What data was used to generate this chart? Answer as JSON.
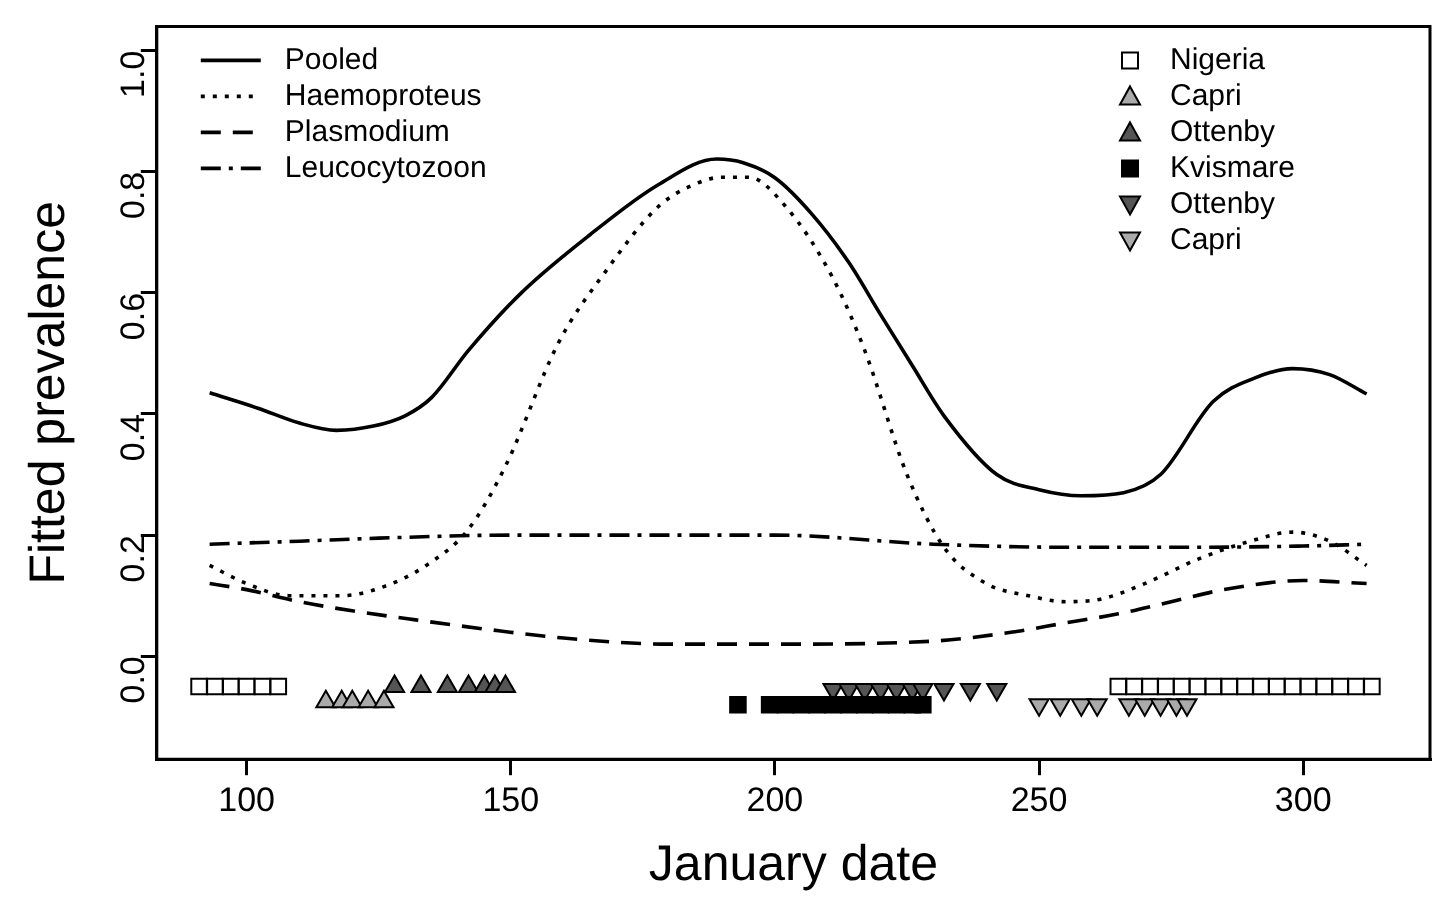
{
  "chart_data": {
    "type": "line",
    "xlabel": "January date",
    "ylabel": "Fitted prevalence",
    "xlim": [
      83,
      324
    ],
    "xticks": [
      100,
      150,
      200,
      250,
      300
    ],
    "ylim": [
      -0.17,
      1.04
    ],
    "yticks": [
      {
        "value": 0,
        "label": "0.0"
      },
      {
        "value": 0.2,
        "label": "0.2"
      },
      {
        "value": 0.4,
        "label": "0.4"
      },
      {
        "value": 0.6,
        "label": "0.6"
      },
      {
        "value": 0.8,
        "label": "0.8"
      },
      {
        "value": 1,
        "label": "1.0"
      }
    ],
    "legend": "top left",
    "marker": "none",
    "series": [
      {
        "name": "Pooled",
        "color": "#000000",
        "line_style": "solid",
        "x": [
          93,
          102,
          110,
          117,
          124,
          130,
          135,
          142,
          152,
          165,
          178,
          189,
          194,
          200,
          207,
          214,
          220,
          226,
          232,
          242,
          250,
          258,
          266,
          273,
          283,
          291,
          298,
          305,
          312
        ],
        "values": [
          0.435,
          0.41,
          0.385,
          0.373,
          0.38,
          0.397,
          0.427,
          0.505,
          0.6,
          0.696,
          0.779,
          0.821,
          0.815,
          0.79,
          0.73,
          0.65,
          0.564,
          0.48,
          0.397,
          0.3,
          0.275,
          0.265,
          0.27,
          0.3,
          0.421,
          0.46,
          0.475,
          0.465,
          0.433
        ]
      },
      {
        "name": "Haemoproteus",
        "color": "#000000",
        "line_style": "dotted",
        "x": [
          93,
          100,
          108,
          118,
          126,
          134,
          142,
          149,
          159,
          168,
          178,
          185,
          190,
          195,
          202,
          211,
          217,
          225,
          232,
          240,
          248,
          255,
          262,
          270,
          280,
          290,
          298,
          305,
          312
        ],
        "values": [
          0.15,
          0.12,
          0.1,
          0.1,
          0.115,
          0.15,
          0.21,
          0.314,
          0.517,
          0.636,
          0.743,
          0.78,
          0.791,
          0.791,
          0.743,
          0.624,
          0.505,
          0.3,
          0.18,
          0.12,
          0.1,
          0.09,
          0.095,
          0.12,
          0.16,
          0.19,
          0.205,
          0.19,
          0.15
        ]
      },
      {
        "name": "Plasmodium",
        "color": "#000000",
        "line_style": "dashed",
        "x": [
          93,
          100,
          110,
          120,
          132,
          145,
          160,
          180,
          200,
          230,
          245,
          255,
          265,
          275,
          285,
          300,
          312
        ],
        "values": [
          0.12,
          0.11,
          0.09,
          0.075,
          0.06,
          0.045,
          0.03,
          0.02,
          0.02,
          0.025,
          0.04,
          0.055,
          0.07,
          0.09,
          0.11,
          0.125,
          0.12
        ]
      },
      {
        "name": "Leucocytozoon",
        "color": "#000000",
        "line_style": "dashdot",
        "x": [
          93,
          110,
          125,
          150,
          175,
          200,
          230,
          255,
          280,
          300,
          312
        ],
        "values": [
          0.185,
          0.19,
          0.195,
          0.2,
          0.2,
          0.2,
          0.185,
          0.18,
          0.18,
          0.182,
          0.185
        ]
      },
      {
        "name": "Nigeria",
        "type": "scatter",
        "color": "#ffffff",
        "marker": "square",
        "x": [
          91,
          94,
          97,
          100,
          103,
          106,
          265,
          268,
          271,
          274,
          277,
          280,
          283,
          286,
          289,
          292,
          295,
          298,
          301,
          304,
          307,
          310,
          313
        ],
        "values": [
          -0.05,
          -0.05,
          -0.05,
          -0.05,
          -0.05,
          -0.05,
          -0.05,
          -0.05,
          -0.05,
          -0.05,
          -0.05,
          -0.05,
          -0.05,
          -0.05,
          -0.05,
          -0.05,
          -0.05,
          -0.05,
          -0.05,
          -0.05,
          -0.05,
          -0.05,
          -0.05
        ]
      },
      {
        "name": "Capri",
        "type": "scatter",
        "color": "#aaaaaa",
        "marker": "triangle",
        "x": [
          115,
          118,
          120,
          123,
          126
        ],
        "values": [
          -0.075,
          -0.075,
          -0.075,
          -0.075,
          -0.075
        ]
      },
      {
        "name": "Ottenby",
        "type": "scatter",
        "color": "#555555",
        "marker": "triangle",
        "x": [
          128,
          133,
          138,
          142,
          145,
          147,
          149
        ],
        "values": [
          -0.05,
          -0.05,
          -0.05,
          -0.05,
          -0.05,
          -0.05,
          -0.05
        ]
      },
      {
        "name": "Kvismare",
        "type": "scatter",
        "color": "#000000",
        "marker": "square",
        "x": [
          193,
          199,
          202,
          205,
          208,
          211,
          214,
          217,
          220,
          223,
          226,
          228
        ],
        "values": [
          -0.08,
          -0.08,
          -0.08,
          -0.08,
          -0.08,
          -0.08,
          -0.08,
          -0.08,
          -0.08,
          -0.08,
          -0.08,
          -0.08
        ]
      },
      {
        "name": "Ottenby",
        "type": "scatter",
        "color": "#555555",
        "marker": "triangle_down",
        "x": [
          211,
          214,
          217,
          220,
          223,
          226,
          228,
          232,
          237,
          242
        ],
        "values": [
          -0.055,
          -0.055,
          -0.055,
          -0.055,
          -0.055,
          -0.055,
          -0.055,
          -0.055,
          -0.055,
          -0.055
        ]
      },
      {
        "name": "Capri",
        "type": "scatter",
        "color": "#aaaaaa",
        "marker": "triangle_down",
        "x": [
          250,
          254,
          258,
          261,
          267,
          270,
          273,
          276,
          278
        ],
        "values": [
          -0.08,
          -0.08,
          -0.08,
          -0.08,
          -0.08,
          -0.08,
          -0.08,
          -0.08,
          -0.08
        ]
      }
    ]
  }
}
